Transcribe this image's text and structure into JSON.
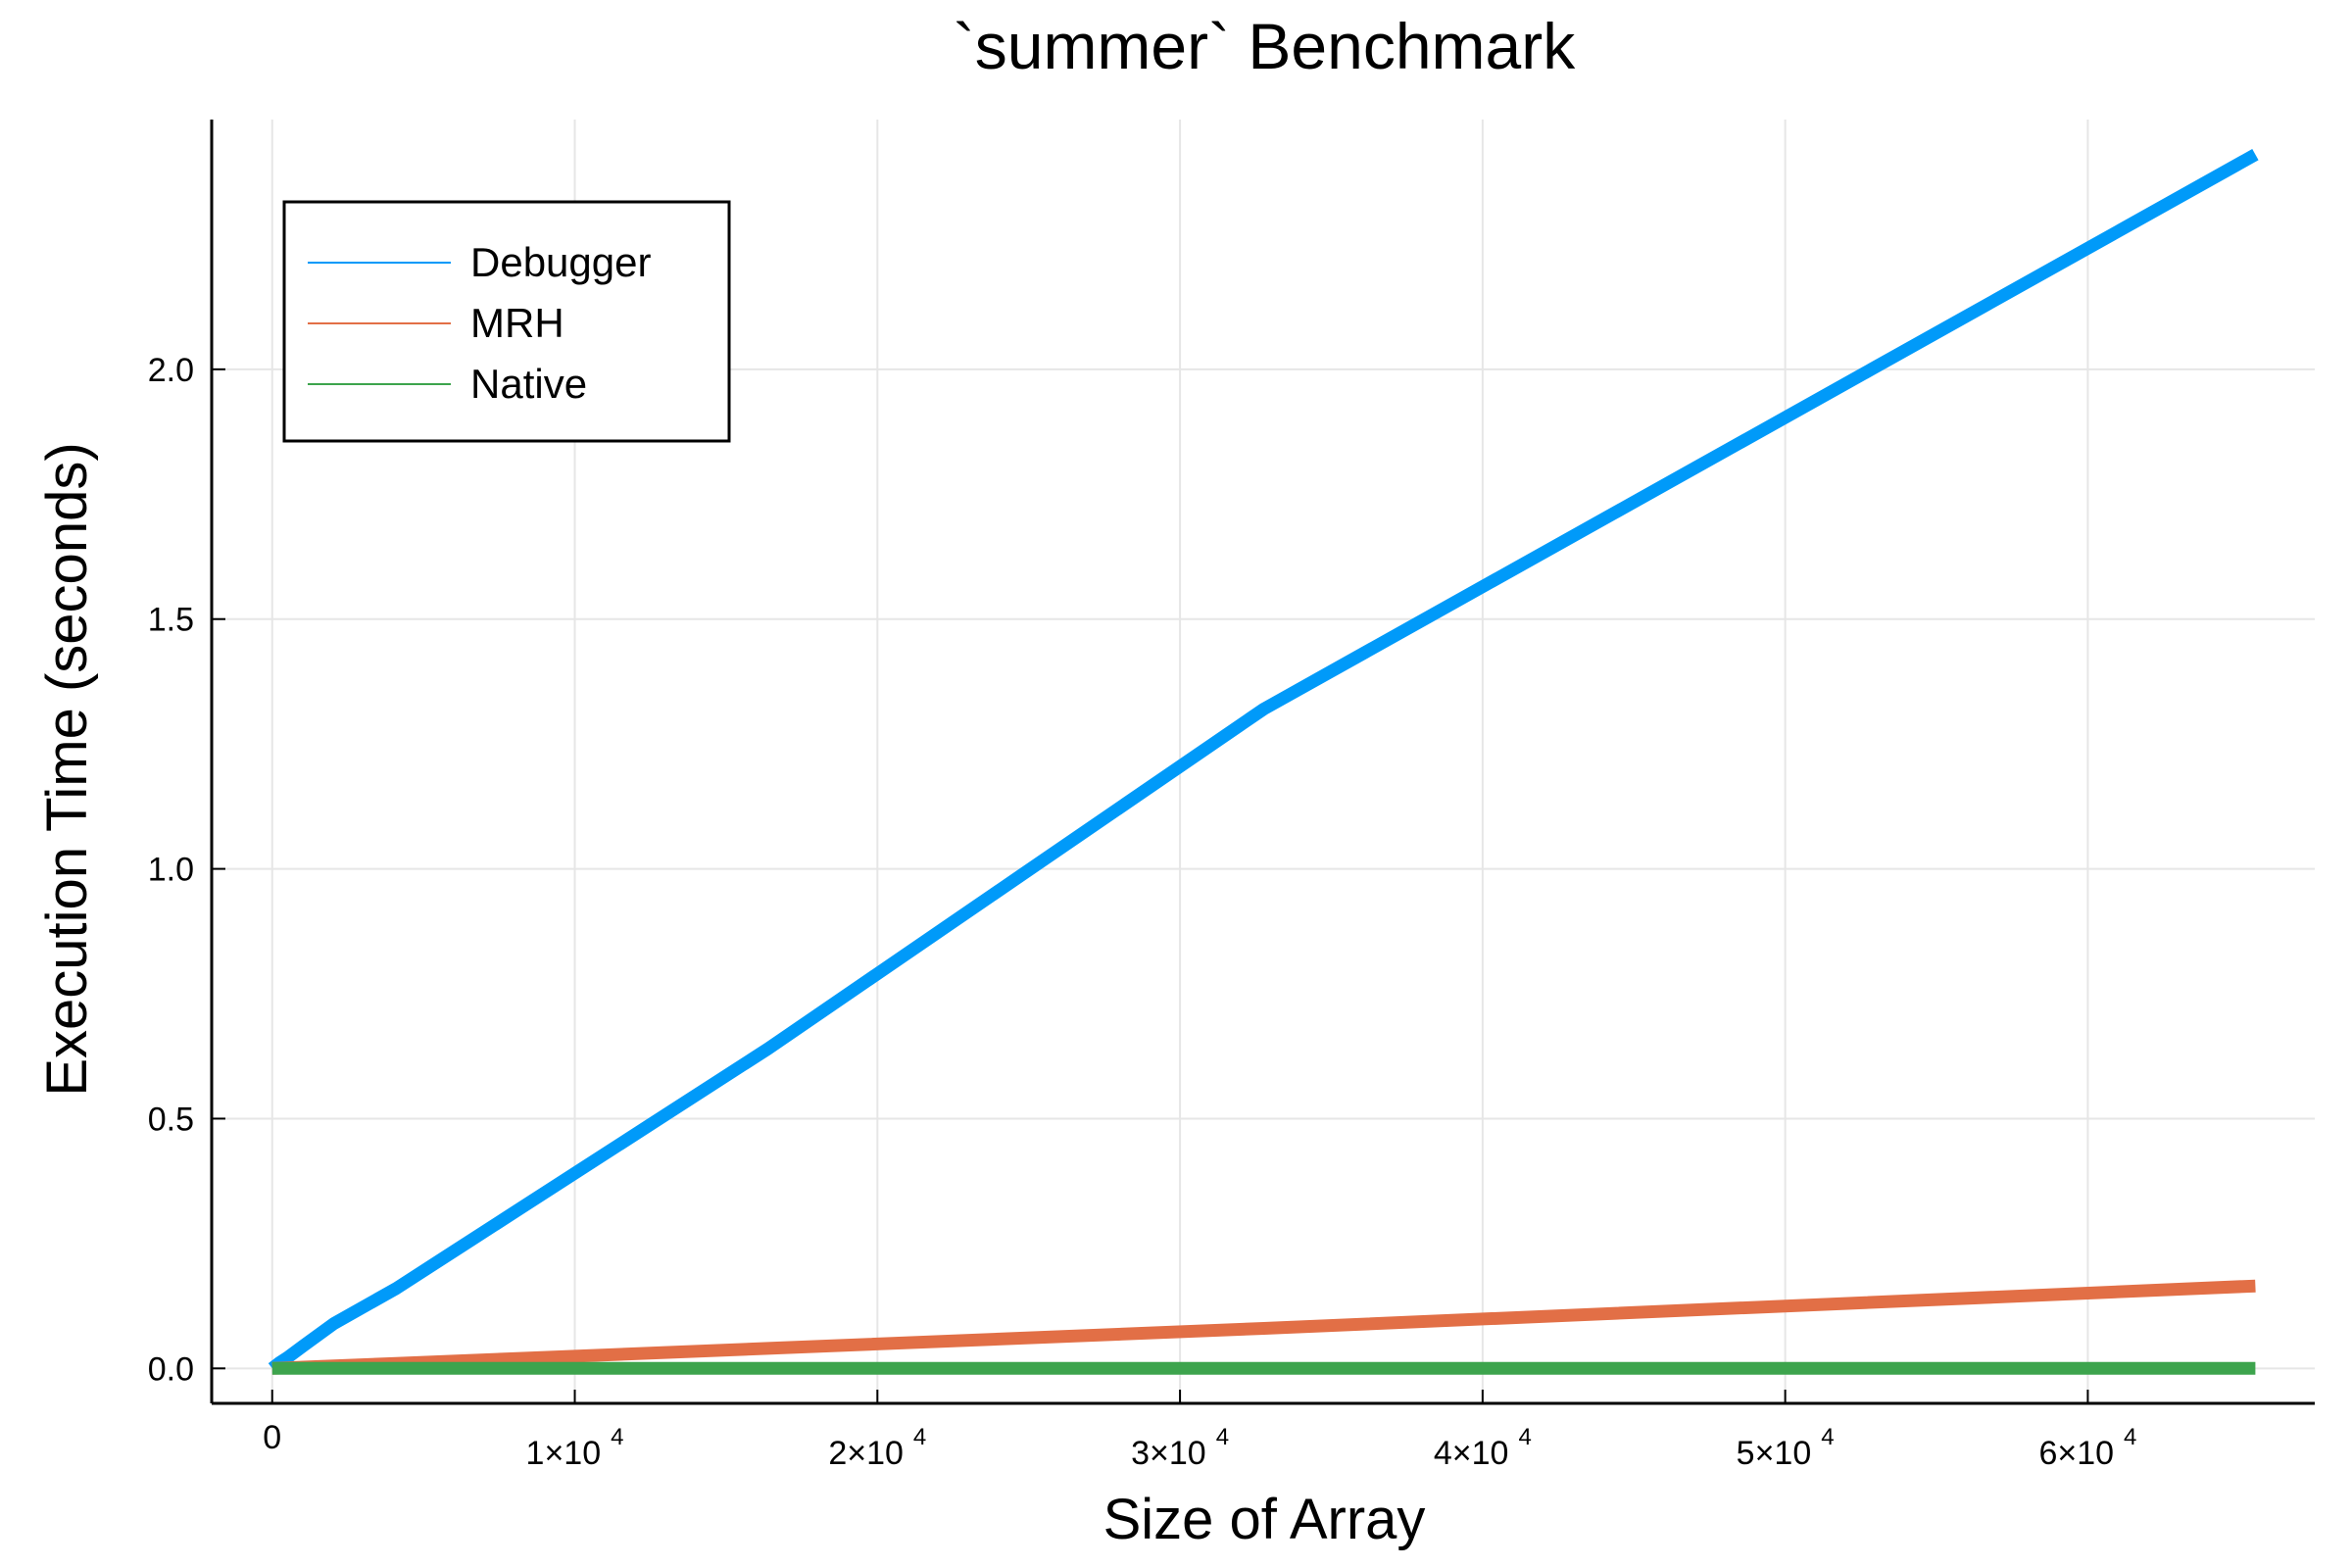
{
  "chart_data": {
    "type": "line",
    "title": "`summer` Benchmark",
    "xlabel": "Size of Array",
    "ylabel": "Execution Time (seconds)",
    "xlim": [
      -2000,
      67500
    ],
    "ylim": [
      -0.07,
      2.5
    ],
    "grid": true,
    "legend_position": "top-left",
    "x_ticks": [
      {
        "value": 0,
        "mantissa": "0",
        "exponent": ""
      },
      {
        "value": 10000,
        "mantissa": "1×10",
        "exponent": "4"
      },
      {
        "value": 20000,
        "mantissa": "2×10",
        "exponent": "4"
      },
      {
        "value": 30000,
        "mantissa": "3×10",
        "exponent": "4"
      },
      {
        "value": 40000,
        "mantissa": "4×10",
        "exponent": "4"
      },
      {
        "value": 50000,
        "mantissa": "5×10",
        "exponent": "4"
      },
      {
        "value": 60000,
        "mantissa": "6×10",
        "exponent": "4"
      }
    ],
    "y_ticks": [
      {
        "value": 0.0,
        "label": "0.0"
      },
      {
        "value": 0.5,
        "label": "0.5"
      },
      {
        "value": 1.0,
        "label": "1.0"
      },
      {
        "value": 1.5,
        "label": "1.5"
      },
      {
        "value": 2.0,
        "label": "2.0"
      }
    ],
    "x": [
      0,
      256,
      512,
      1024,
      2048,
      4096,
      8192,
      16384,
      32768,
      65536
    ],
    "series": [
      {
        "name": "Debugger",
        "color": "#009af9",
        "values": [
          0.0,
          0.012,
          0.022,
          0.045,
          0.09,
          0.16,
          0.32,
          0.64,
          1.32,
          2.43
        ]
      },
      {
        "name": "MRH",
        "color": "#e26f46",
        "values": [
          0.0,
          0.0006,
          0.0012,
          0.0025,
          0.005,
          0.01,
          0.02,
          0.04,
          0.08,
          0.165
        ]
      },
      {
        "name": "Native",
        "color": "#3da44d",
        "values": [
          0.0,
          0.0,
          0.0,
          0.0,
          0.0,
          0.0,
          0.0,
          0.0,
          0.0,
          0.0
        ]
      }
    ]
  }
}
